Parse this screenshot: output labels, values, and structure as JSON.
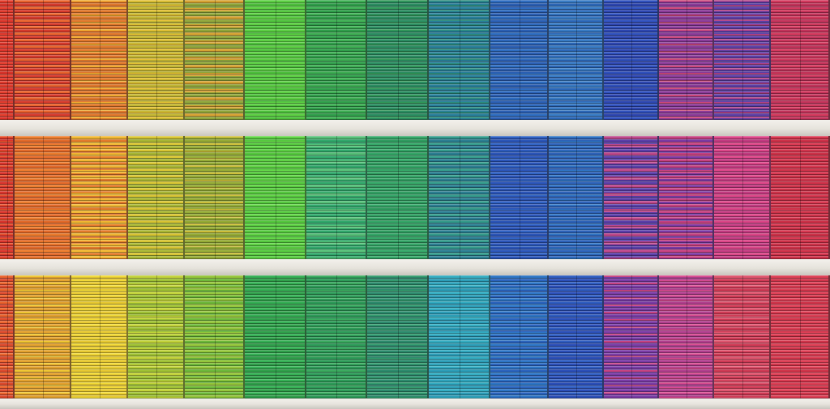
{
  "scene": {
    "subject": "colorful-window-blinds-facade",
    "ledge_color": "#ece9e3",
    "rows": [
      {
        "panels": [
          {
            "base": "#d9332a",
            "accent": "#e5402e"
          },
          {
            "base": "#d53a2c",
            "accent": "#ec6b2d"
          },
          {
            "base": "#e0782c",
            "accent": "#f2b531"
          },
          {
            "base": "#c3b633",
            "accent": "#e9c134"
          },
          {
            "base": "#8fa53a",
            "accent": "#e2a232"
          },
          {
            "base": "#4cbf3b",
            "accent": "#5fd144"
          },
          {
            "base": "#2f9e4a",
            "accent": "#41b155"
          },
          {
            "base": "#2b8d61",
            "accent": "#329a57"
          },
          {
            "base": "#287f9a",
            "accent": "#2c8f78"
          },
          {
            "base": "#2b5fb3",
            "accent": "#2f6fc2"
          },
          {
            "base": "#2b66b6",
            "accent": "#3a7fc6"
          },
          {
            "base": "#2d46b0",
            "accent": "#3153bf"
          },
          {
            "base": "#8a3b98",
            "accent": "#d94a73"
          },
          {
            "base": "#5c3fa6",
            "accent": "#c04380"
          },
          {
            "base": "#c2335a",
            "accent": "#d63a5e"
          }
        ]
      },
      {
        "panels": [
          {
            "base": "#d9352c",
            "accent": "#e8552c"
          },
          {
            "base": "#e36a2a",
            "accent": "#ee7f2e"
          },
          {
            "base": "#e37a2c",
            "accent": "#f3c234"
          },
          {
            "base": "#a8b634",
            "accent": "#e0c733"
          },
          {
            "base": "#95ab36",
            "accent": "#d8c23a"
          },
          {
            "base": "#55c83e",
            "accent": "#66d84a"
          },
          {
            "base": "#31a86b",
            "accent": "#5cc37a"
          },
          {
            "base": "#2f9b5f",
            "accent": "#36a96a"
          },
          {
            "base": "#2b7e91",
            "accent": "#35a08a"
          },
          {
            "base": "#2b55b8",
            "accent": "#3267c6"
          },
          {
            "base": "#2d62b8",
            "accent": "#2f78c5"
          },
          {
            "base": "#5a3fa9",
            "accent": "#cf4a86"
          },
          {
            "base": "#7a3aa4",
            "accent": "#d2427a"
          },
          {
            "base": "#c23a80",
            "accent": "#e0488a"
          },
          {
            "base": "#cd3148",
            "accent": "#dd3c55"
          }
        ]
      },
      {
        "panels": [
          {
            "base": "#dd4a2d",
            "accent": "#ee6a2e"
          },
          {
            "base": "#e3a22f",
            "accent": "#f1cf35"
          },
          {
            "base": "#e7c932",
            "accent": "#f4de3a"
          },
          {
            "base": "#9fc134",
            "accent": "#c9d63b"
          },
          {
            "base": "#6cb83a",
            "accent": "#9cc83b"
          },
          {
            "base": "#2f9f4a",
            "accent": "#36b357"
          },
          {
            "base": "#2d9b58",
            "accent": "#3eae60"
          },
          {
            "base": "#2c8a6c",
            "accent": "#35a06f"
          },
          {
            "base": "#2c9db7",
            "accent": "#36b0c4"
          },
          {
            "base": "#2b63bd",
            "accent": "#2f79c8"
          },
          {
            "base": "#2b4fb8",
            "accent": "#3160c3"
          },
          {
            "base": "#7a3ca6",
            "accent": "#d6457a"
          },
          {
            "base": "#b13f8e",
            "accent": "#e04d8f"
          },
          {
            "base": "#cf3a55",
            "accent": "#e25a73"
          },
          {
            "base": "#d0344a",
            "accent": "#e14258"
          }
        ]
      }
    ]
  }
}
